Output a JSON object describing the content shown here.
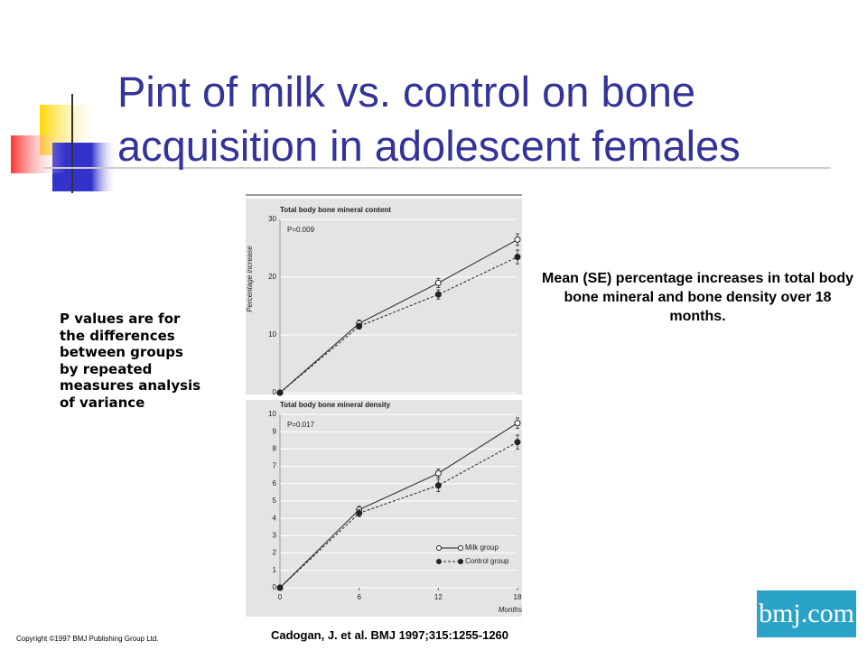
{
  "slide": {
    "title": "Pint of milk vs. control on bone acquisition in adolescent females",
    "note": "P values are for the differences between groups by repeated measures analysis of variance",
    "caption": "Mean (SE) percentage increases in total body bone mineral and bone density over 18 months.",
    "citation": "Cadogan, J. et al. BMJ 1997;315:1255-1260",
    "copyright": "Copyright ©1997 BMJ Publishing Group Ltd.",
    "logo": "bmj.com"
  },
  "chart_data": [
    {
      "type": "line",
      "title": "Total body bone mineral content",
      "annotation": "P=0.009",
      "y_label": "Percentage increase",
      "x": [
        0,
        6,
        12,
        18
      ],
      "xlim": [
        0,
        18
      ],
      "ylim": [
        0,
        30
      ],
      "yticks": [
        0,
        10,
        20,
        30
      ],
      "series": [
        {
          "color": "#222222",
          "dashed": false,
          "filled": false,
          "values": [
            0,
            12,
            19,
            26.5
          ],
          "errors": [
            null,
            0.6,
            0.8,
            1
          ]
        },
        {
          "color": "#222222",
          "dashed": true,
          "filled": true,
          "values": [
            0,
            11.5,
            17,
            23.5
          ],
          "errors": [
            null,
            0.5,
            0.8,
            1.2
          ]
        }
      ]
    },
    {
      "type": "line",
      "title": "Total body bone mineral density",
      "annotation": "P=0.017",
      "x_label": "Months",
      "x": [
        0,
        6,
        12,
        18
      ],
      "xlim": [
        0,
        18
      ],
      "xticks": [
        0,
        6,
        12,
        18
      ],
      "ylim": [
        0,
        10
      ],
      "yticks": [
        0,
        1,
        2,
        3,
        4,
        5,
        6,
        7,
        8,
        9,
        10
      ],
      "series": [
        {
          "name": "Milk group",
          "color": "#222222",
          "dashed": false,
          "filled": false,
          "values": [
            0,
            4.5,
            6.6,
            9.5
          ],
          "errors": [
            null,
            0.2,
            0.25,
            0.3
          ]
        },
        {
          "name": "Control group",
          "color": "#222222",
          "dashed": true,
          "filled": true,
          "values": [
            0,
            4.3,
            5.9,
            8.4
          ],
          "errors": [
            null,
            0.2,
            0.35,
            0.4
          ]
        }
      ]
    }
  ]
}
